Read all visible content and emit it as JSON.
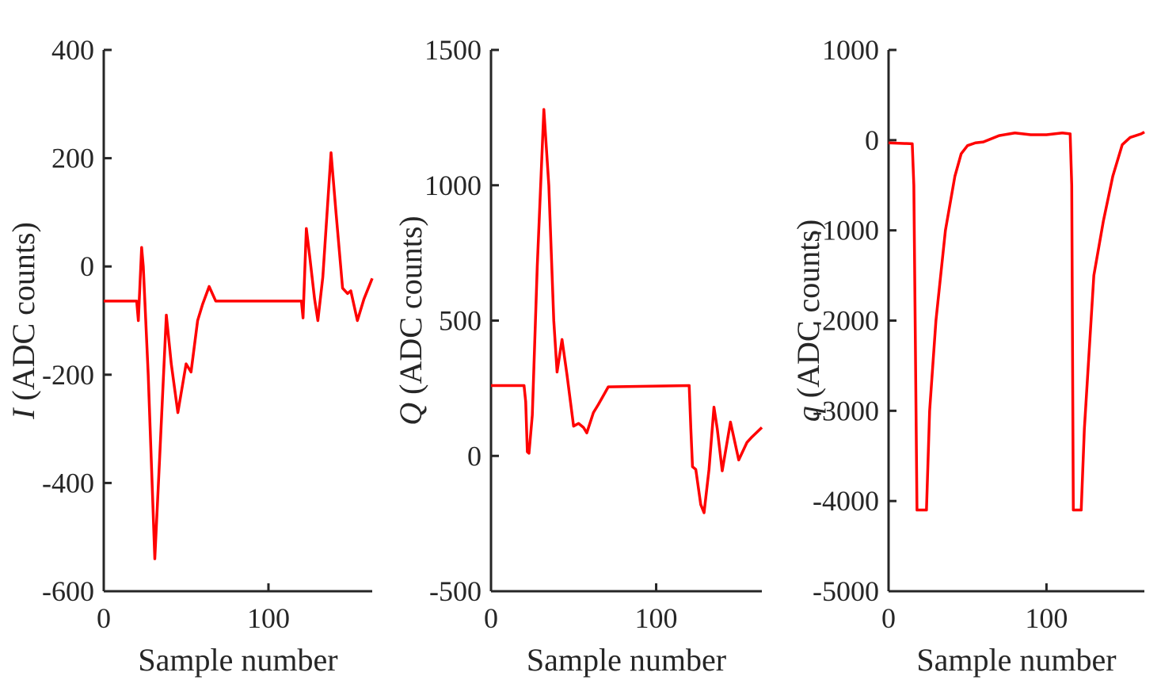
{
  "chart_data": [
    {
      "type": "line",
      "xlabel": "Sample number",
      "ylabel_symbol": "I",
      "ylabel": "(ADC counts)",
      "xlim": [
        0,
        163
      ],
      "xticks": [
        0,
        100
      ],
      "ylim": [
        -600,
        400
      ],
      "yticks": [
        -600,
        -400,
        -200,
        0,
        200,
        400
      ],
      "color": "#ff0000",
      "x": [
        0,
        20,
        21,
        23,
        24,
        27,
        31,
        34,
        38,
        41,
        45,
        50,
        53,
        57,
        60,
        64,
        68,
        120,
        121,
        123,
        125,
        128,
        130,
        133,
        138,
        141,
        145,
        148,
        150,
        154,
        158,
        163
      ],
      "values": [
        -64,
        -64,
        -100,
        35,
        0,
        -200,
        -540,
        -350,
        -90,
        -180,
        -270,
        -180,
        -195,
        -100,
        -70,
        -37,
        -64,
        -64,
        -95,
        70,
        20,
        -60,
        -100,
        -20,
        210,
        100,
        -40,
        -50,
        -45,
        -100,
        -60,
        -22
      ]
    },
    {
      "type": "line",
      "xlabel": "Sample number",
      "ylabel_symbol": "Q",
      "ylabel": "(ADC counts)",
      "xlim": [
        0,
        164
      ],
      "xticks": [
        0,
        100
      ],
      "ylim": [
        -500,
        1500
      ],
      "yticks": [
        -500,
        0,
        500,
        1000,
        1500
      ],
      "color": "#ff0000",
      "x": [
        0,
        20,
        21,
        22,
        23,
        25,
        28,
        32,
        35,
        38,
        40,
        43,
        46,
        50,
        53,
        56,
        58,
        62,
        65,
        71,
        120,
        121,
        122,
        124,
        127,
        129,
        132,
        135,
        137,
        140,
        145,
        150,
        155,
        158,
        164
      ],
      "values": [
        260,
        260,
        200,
        15,
        10,
        150,
        700,
        1280,
        1000,
        500,
        310,
        430,
        300,
        110,
        120,
        105,
        85,
        160,
        190,
        255,
        260,
        100,
        -40,
        -50,
        -180,
        -210,
        -50,
        180,
        100,
        -55,
        125,
        -15,
        50,
        70,
        105
      ]
    },
    {
      "type": "line",
      "xlabel": "Sample number",
      "ylabel_symbol": "q",
      "ylabel": "(ADC counts)",
      "xlim": [
        0,
        162
      ],
      "xticks": [
        0,
        100
      ],
      "ylim": [
        -5000,
        1000
      ],
      "yticks": [
        -5000,
        -4000,
        -3000,
        -2000,
        -1000,
        0,
        1000
      ],
      "color": "#ff0000",
      "x": [
        0,
        15,
        16,
        18,
        24,
        26,
        30,
        36,
        42,
        46,
        50,
        55,
        60,
        70,
        80,
        90,
        100,
        110,
        115,
        116,
        117,
        122,
        124,
        130,
        136,
        142,
        148,
        153,
        160,
        162
      ],
      "values": [
        -30,
        -40,
        -500,
        -4100,
        -4100,
        -3000,
        -2000,
        -1000,
        -400,
        -150,
        -60,
        -30,
        -20,
        50,
        80,
        60,
        60,
        80,
        70,
        -500,
        -4100,
        -4100,
        -3200,
        -1500,
        -900,
        -400,
        -50,
        30,
        70,
        90
      ]
    }
  ]
}
